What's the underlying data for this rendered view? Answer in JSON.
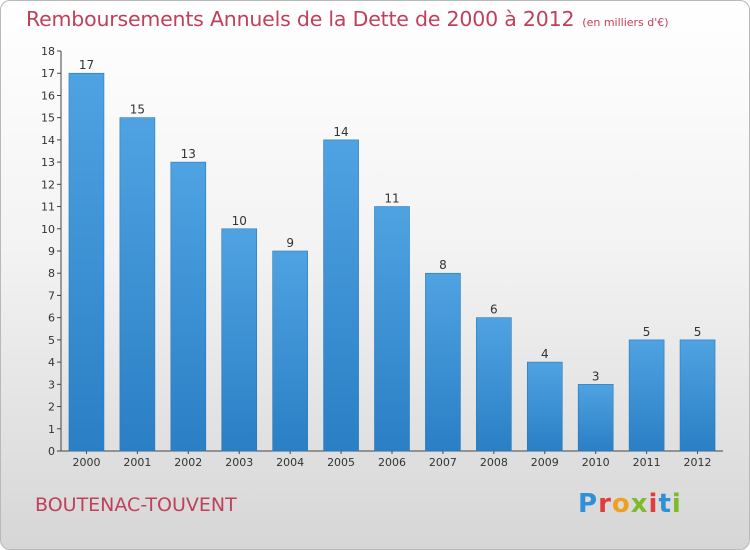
{
  "header": {
    "title": "Remboursements Annuels de la Dette de 2000 à 2012",
    "unit": "(en milliers d'€)"
  },
  "footer": {
    "town": "BOUTENAC-TOUVENT",
    "logo_letters": [
      "P",
      "r",
      "o",
      "x",
      "i",
      "t",
      "i"
    ],
    "logo_colors": [
      "#2f8fd8",
      "#e03c3c",
      "#f0a020",
      "#7dbb2a",
      "#e03c3c",
      "#2f8fd8",
      "#7dbb2a"
    ]
  },
  "chart_data": {
    "type": "bar",
    "title": "Remboursements Annuels de la Dette de 2000 à 2012",
    "categories": [
      "2000",
      "2001",
      "2002",
      "2003",
      "2004",
      "2005",
      "2006",
      "2007",
      "2008",
      "2009",
      "2010",
      "2011",
      "2012"
    ],
    "values": [
      17,
      15,
      13,
      10,
      9,
      14,
      11,
      8,
      6,
      4,
      3,
      5,
      5
    ],
    "ylim": [
      0,
      18
    ],
    "yticks": [
      0,
      1,
      2,
      3,
      4,
      5,
      6,
      7,
      8,
      9,
      10,
      11,
      12,
      13,
      14,
      15,
      16,
      17,
      18
    ],
    "grid": false,
    "bar_color": "#4fa3e2",
    "bar_color_dark": "#2a7fc5",
    "text_color": "#333333"
  }
}
